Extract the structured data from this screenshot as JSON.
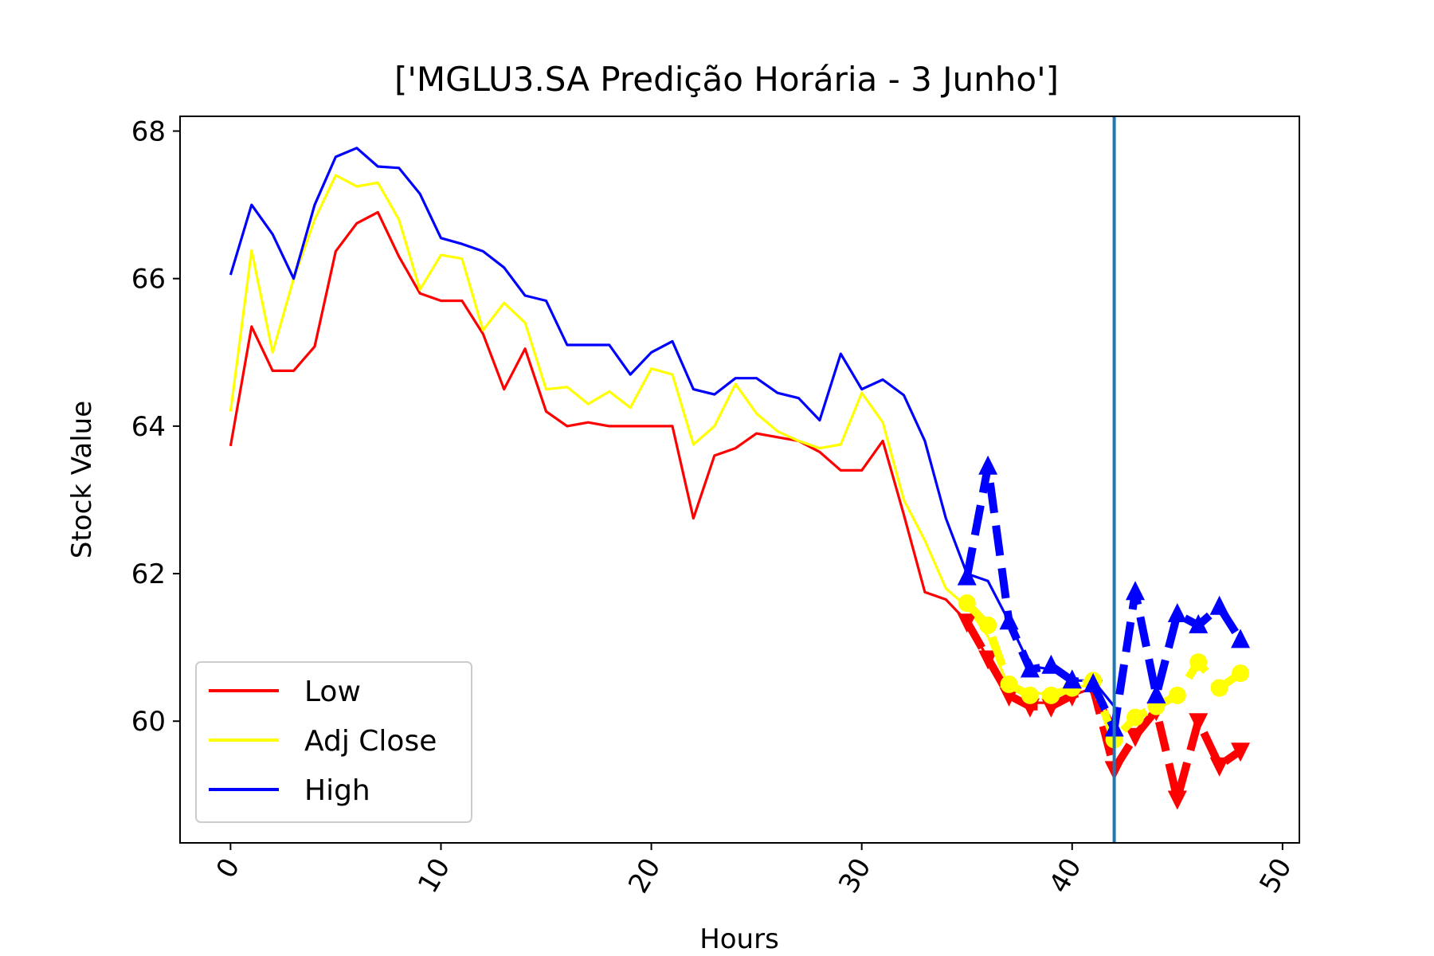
{
  "chart_data": {
    "type": "line",
    "title": "['MGLU3.SA Predição Horária - 3 Junho']",
    "xlabel": "Hours",
    "ylabel": "Stock Value",
    "xlim": [
      -2.4,
      50.8
    ],
    "ylim": [
      58.35,
      68.2
    ],
    "x_ticks": [
      0,
      10,
      20,
      30,
      40,
      50
    ],
    "x_tick_labels": [
      "0",
      "10",
      "20",
      "30",
      "40",
      "50"
    ],
    "y_ticks": [
      60,
      62,
      64,
      66,
      68
    ],
    "y_tick_labels": [
      "60",
      "62",
      "64",
      "66",
      "68"
    ],
    "x_tick_rotation": 60,
    "grid": false,
    "legend_position": "lower-left",
    "split_line_x": 42,
    "split_line_color": "#1f77b4",
    "series": [
      {
        "name": "Low",
        "color": "#ff0000",
        "x": [
          0,
          1,
          2,
          3,
          4,
          5,
          6,
          7,
          8,
          9,
          10,
          11,
          12,
          13,
          14,
          15,
          16,
          17,
          18,
          19,
          20,
          21,
          22,
          23,
          24,
          25,
          26,
          27,
          28,
          29,
          30,
          31,
          32,
          33,
          34,
          35,
          36,
          37,
          38,
          39,
          40,
          41,
          42
        ],
        "values": [
          63.73,
          65.35,
          64.75,
          64.75,
          65.08,
          66.37,
          66.75,
          66.9,
          66.3,
          65.8,
          65.7,
          65.7,
          65.25,
          64.5,
          65.05,
          64.2,
          64.0,
          64.05,
          64.0,
          64.0,
          64.0,
          64.0,
          62.75,
          63.6,
          63.7,
          63.9,
          63.85,
          63.8,
          63.65,
          63.4,
          63.4,
          63.8,
          62.8,
          61.75,
          61.65,
          61.35,
          60.85,
          60.35,
          60.25,
          60.25,
          60.35,
          60.45,
          59.95
        ]
      },
      {
        "name": "Adj Close",
        "color": "#ffff00",
        "x": [
          0,
          1,
          2,
          3,
          4,
          5,
          6,
          7,
          8,
          9,
          10,
          11,
          12,
          13,
          14,
          15,
          16,
          17,
          18,
          19,
          20,
          21,
          22,
          23,
          24,
          25,
          26,
          27,
          28,
          29,
          30,
          31,
          32,
          33,
          34,
          35,
          36,
          37,
          38,
          39,
          40,
          41,
          42
        ],
        "values": [
          64.2,
          66.38,
          65.0,
          66.0,
          66.8,
          67.4,
          67.25,
          67.3,
          66.8,
          65.85,
          66.32,
          66.27,
          65.3,
          65.67,
          65.4,
          64.5,
          64.53,
          64.3,
          64.47,
          64.25,
          64.78,
          64.7,
          63.75,
          64.0,
          64.57,
          64.17,
          63.93,
          63.8,
          63.7,
          63.75,
          64.45,
          64.05,
          63.0,
          62.45,
          61.8,
          61.55,
          61.15,
          60.45,
          60.4,
          60.35,
          60.45,
          60.5,
          59.85
        ]
      },
      {
        "name": "High",
        "color": "#0000ff",
        "x": [
          0,
          1,
          2,
          3,
          4,
          5,
          6,
          7,
          8,
          9,
          10,
          11,
          12,
          13,
          14,
          15,
          16,
          17,
          18,
          19,
          20,
          21,
          22,
          23,
          24,
          25,
          26,
          27,
          28,
          29,
          30,
          31,
          32,
          33,
          34,
          35,
          36,
          37,
          38,
          39,
          40,
          41,
          42
        ],
        "values": [
          66.05,
          67.0,
          66.6,
          66.0,
          67.0,
          67.65,
          67.77,
          67.52,
          67.5,
          67.15,
          66.55,
          66.47,
          66.37,
          66.15,
          65.77,
          65.7,
          65.1,
          65.1,
          65.1,
          64.7,
          65.0,
          65.15,
          64.5,
          64.43,
          64.65,
          64.65,
          64.45,
          64.38,
          64.08,
          64.98,
          64.5,
          64.63,
          64.42,
          63.8,
          62.75,
          62.0,
          61.9,
          61.35,
          60.75,
          60.7,
          60.55,
          60.55,
          60.2
        ]
      }
    ],
    "prediction_series": [
      {
        "base": "Low",
        "color": "#ff0000",
        "marker": "triangle-down",
        "x": [
          35,
          36,
          37,
          38,
          39,
          40,
          41,
          42,
          43,
          44,
          45,
          46,
          47,
          48
        ],
        "values": [
          61.35,
          60.85,
          60.35,
          60.2,
          60.2,
          60.35,
          60.45,
          59.35,
          59.8,
          60.15,
          58.95,
          60.0,
          59.4,
          59.6
        ]
      },
      {
        "base": "Adj Close",
        "color": "#ffff00",
        "marker": "circle",
        "x": [
          35,
          36,
          37,
          38,
          39,
          40,
          41,
          42,
          43,
          44,
          45,
          46,
          47,
          48
        ],
        "values": [
          61.6,
          61.3,
          60.5,
          60.35,
          60.35,
          60.45,
          60.55,
          59.75,
          60.05,
          60.2,
          60.35,
          60.8,
          60.45,
          60.65
        ]
      },
      {
        "base": "High",
        "color": "#0000ff",
        "marker": "triangle-up",
        "x": [
          35,
          36,
          37,
          38,
          39,
          40,
          41,
          42,
          43,
          44,
          45,
          46,
          47,
          48
        ],
        "values": [
          61.95,
          63.45,
          61.35,
          60.7,
          60.75,
          60.55,
          60.5,
          59.9,
          61.75,
          60.35,
          61.45,
          61.3,
          61.55,
          61.1
        ]
      }
    ]
  }
}
